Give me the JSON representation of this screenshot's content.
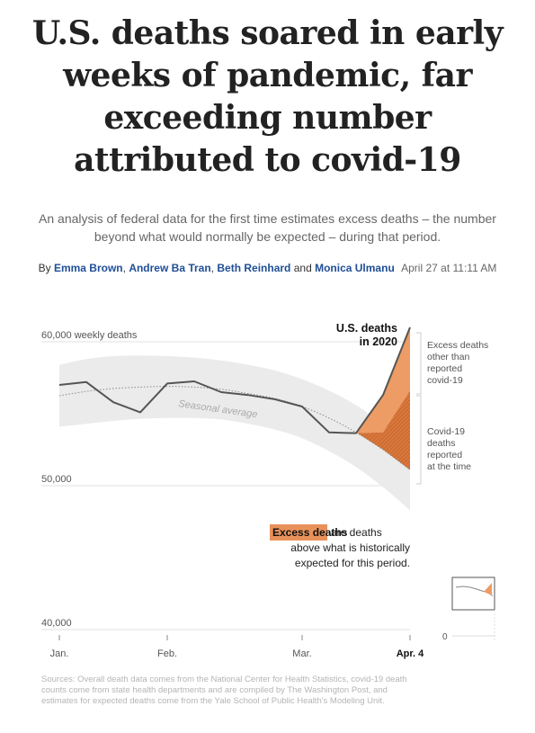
{
  "headline": "U.S. deaths soared in early weeks of pandemic, far exceeding number attributed to covid-19",
  "dek": "An analysis of federal data for the first time estimates excess deaths – the number beyond what would normally be expected – during that period.",
  "byline": {
    "by": "By",
    "authors": [
      "Emma Brown",
      "Andrew Ba Tran",
      "Beth Reinhard",
      "Monica Ulmanu"
    ],
    "sep1": ",",
    "sep2": ",",
    "and": "and",
    "date": "April 27 at 11:11 AM"
  },
  "colors": {
    "excess_other": "#ec9c64",
    "covid_reported": "#d9773c",
    "actual_line": "#555555",
    "seasonal_band": "#ebebeb",
    "byline_link": "#1f4e96"
  },
  "chart_data": {
    "type": "line",
    "y_unit": "weekly deaths",
    "ylim": [
      40000,
      61000
    ],
    "yticks": [
      {
        "value": 40000,
        "label": "40,000"
      },
      {
        "value": 50000,
        "label": "50,000"
      },
      {
        "value": 60000,
        "label": "60,000 weekly deaths"
      }
    ],
    "xticks": [
      {
        "week": 0,
        "label": "Jan."
      },
      {
        "week": 4,
        "label": "Feb."
      },
      {
        "week": 9,
        "label": "Mar."
      },
      {
        "week": 13,
        "label": "Apr. 4"
      }
    ],
    "series": [
      {
        "name": "U.S. deaths in 2020",
        "x": [
          0,
          1,
          2,
          3,
          4,
          5,
          6,
          7,
          8,
          9,
          10,
          11,
          12,
          13
        ],
        "values": [
          57000,
          57200,
          55800,
          55100,
          57100,
          57250,
          56500,
          56300,
          56000,
          55500,
          53700,
          53650,
          56300,
          61000
        ]
      },
      {
        "name": "Seasonal average",
        "x": [
          0,
          1,
          2,
          3,
          4,
          5,
          6,
          7,
          8,
          9,
          10,
          11,
          12,
          13
        ],
        "values": [
          56250,
          56550,
          56750,
          56850,
          56900,
          56850,
          56700,
          56400,
          56050,
          55500,
          54700,
          53700,
          52500,
          51100
        ]
      },
      {
        "name": "Seasonal band upper",
        "x": [
          0,
          1,
          2,
          3,
          4,
          5,
          6,
          7,
          8,
          9,
          10,
          11,
          12,
          13
        ],
        "values": [
          58400,
          58800,
          59000,
          59050,
          59000,
          58900,
          58700,
          58400,
          58000,
          57400,
          56600,
          55600,
          54300,
          53200
        ]
      },
      {
        "name": "Seasonal band lower",
        "x": [
          0,
          1,
          2,
          3,
          4,
          5,
          6,
          7,
          8,
          9,
          10,
          11,
          12,
          13
        ],
        "values": [
          54100,
          54300,
          54500,
          54650,
          54700,
          54700,
          54600,
          54300,
          53900,
          53300,
          52400,
          51300,
          49900,
          48300
        ]
      },
      {
        "name": "Covid-19 deaths reported at the time (top of band)",
        "x": [
          11,
          12,
          13
        ],
        "values": [
          53650,
          53700,
          56600
        ]
      }
    ],
    "annotations": {
      "series_label_line1": "U.S. deaths",
      "series_label_line2": "in 2020",
      "seasonal_label": "Seasonal average",
      "excess_other": [
        "Excess deaths",
        "other than",
        "reported",
        "covid-19"
      ],
      "covid_reported": [
        "Covid-19",
        "deaths",
        "reported",
        "at the time"
      ],
      "callout_key": "Excess deaths",
      "callout_rest": [
        "are deaths",
        "above what is historically",
        "expected for this period."
      ]
    },
    "inset": {
      "zero_label": "0"
    }
  },
  "source": "Sources: Overall death data comes from the National Center for Health Statistics, covid-19 death counts come from state health departments and are compiled by The Washington Post, and estimates for expected deaths come from the Yale School of Public Health's Modeling Unit."
}
